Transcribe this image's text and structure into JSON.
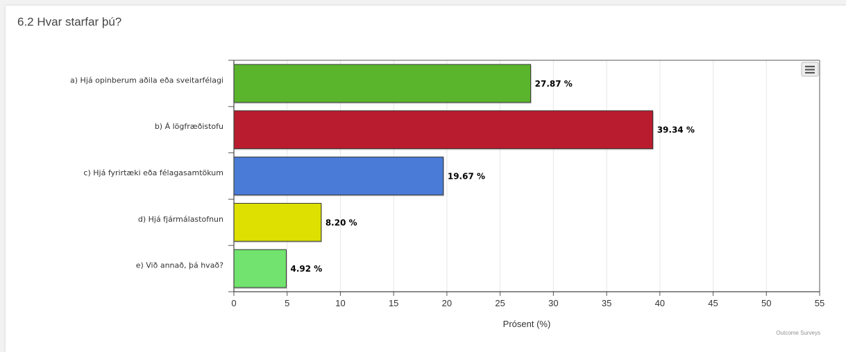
{
  "question": {
    "title": "6.2 Hvar starfar þú?"
  },
  "chart_data": {
    "type": "bar",
    "orientation": "horizontal",
    "categories": [
      "a) Hjá opinberum aðila eða sveitarfélagi",
      "b) Á lögfræðistofu",
      "c) Hjá fyrirtæki eða félagasamtökum",
      "d) Hjá fjármálastofnun",
      "e) Við annað, þá hvað?"
    ],
    "values": [
      27.87,
      39.34,
      19.67,
      8.2,
      4.92
    ],
    "value_labels": [
      "27.87 %",
      "39.34 %",
      "19.67 %",
      "8.20 %",
      "4.92 %"
    ],
    "colors": [
      "#5ab52d",
      "#b81c2e",
      "#4a7bd6",
      "#dde000",
      "#72e36e"
    ],
    "xlabel": "Prósent (%)",
    "xlim": [
      0,
      55
    ],
    "xticks": [
      0,
      5,
      10,
      15,
      20,
      25,
      30,
      35,
      40,
      45,
      50,
      55
    ],
    "grid": true,
    "legend": "none"
  },
  "menu": {
    "icon": "hamburger-menu-icon"
  },
  "credit": {
    "text": "Outcome Surveys"
  }
}
